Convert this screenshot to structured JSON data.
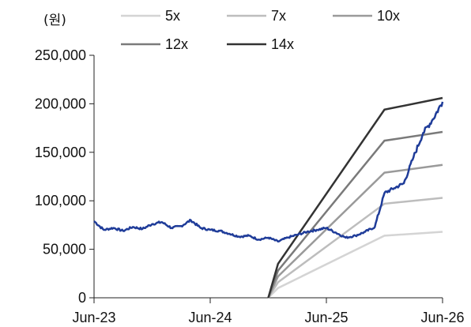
{
  "chart_data": {
    "type": "line",
    "y_unit_label": "(원)",
    "ylim": [
      0,
      250000
    ],
    "y_ticks": [
      0,
      50000,
      100000,
      150000,
      200000,
      250000
    ],
    "y_tick_labels": [
      "0",
      "50,000",
      "100,000",
      "150,000",
      "200,000",
      "250,000"
    ],
    "x_tick_labels": [
      "Jun-23",
      "Jun-24",
      "Jun-25",
      "Jun-26"
    ],
    "x_ticks": [
      "2023-06",
      "2024-06",
      "2025-06",
      "2026-06"
    ],
    "grid": false,
    "legend_position": "top",
    "price_series": {
      "color": "#1f3c99",
      "points": [
        [
          "2023-06",
          79000
        ],
        [
          "2023-07",
          70000
        ],
        [
          "2023-08",
          72000
        ],
        [
          "2023-09",
          69000
        ],
        [
          "2023-10",
          73000
        ],
        [
          "2023-11",
          71000
        ],
        [
          "2023-12",
          76000
        ],
        [
          "2024-01",
          78000
        ],
        [
          "2024-02",
          72000
        ],
        [
          "2024-03",
          74000
        ],
        [
          "2024-04",
          80000
        ],
        [
          "2024-05",
          72000
        ],
        [
          "2024-06",
          70000
        ],
        [
          "2024-07",
          69000
        ],
        [
          "2024-08",
          66000
        ],
        [
          "2024-09",
          63000
        ],
        [
          "2024-10",
          64000
        ],
        [
          "2024-11",
          60000
        ],
        [
          "2024-12",
          62000
        ],
        [
          "2025-01",
          58000
        ],
        [
          "2025-02",
          62000
        ],
        [
          "2025-03",
          65000
        ],
        [
          "2025-04",
          68000
        ],
        [
          "2025-05",
          70000
        ],
        [
          "2025-06",
          72000
        ],
        [
          "2025-07",
          67000
        ],
        [
          "2025-08",
          62000
        ],
        [
          "2025-09",
          64000
        ],
        [
          "2025-10",
          68000
        ],
        [
          "2025-11",
          73000
        ],
        [
          "2025-12",
          108000
        ],
        [
          "2026-01",
          113000
        ],
        [
          "2026-02",
          118000
        ],
        [
          "2026-03",
          145000
        ],
        [
          "2026-04",
          170000
        ],
        [
          "2026-05",
          184000
        ],
        [
          "2026-06",
          202000
        ]
      ]
    },
    "series": [
      {
        "name": "5x",
        "color": "#d4d4d4",
        "values": [
          [
            "2024-12",
            0
          ],
          [
            "2025-01",
            10000
          ],
          [
            "2025-12",
            64000
          ],
          [
            "2026-06",
            68000
          ]
        ]
      },
      {
        "name": "7x",
        "color": "#bdbdbd",
        "values": [
          [
            "2024-12",
            0
          ],
          [
            "2025-01",
            16000
          ],
          [
            "2025-12",
            97000
          ],
          [
            "2026-06",
            103000
          ]
        ]
      },
      {
        "name": "10x",
        "color": "#9a9a9a",
        "values": [
          [
            "2024-12",
            0
          ],
          [
            "2025-01",
            22000
          ],
          [
            "2025-12",
            129000
          ],
          [
            "2026-06",
            137000
          ]
        ]
      },
      {
        "name": "12x",
        "color": "#7a7a7a",
        "values": [
          [
            "2024-12",
            0
          ],
          [
            "2025-01",
            28000
          ],
          [
            "2025-12",
            162000
          ],
          [
            "2026-06",
            171000
          ]
        ]
      },
      {
        "name": "14x",
        "color": "#333333",
        "values": [
          [
            "2024-12",
            0
          ],
          [
            "2025-01",
            35000
          ],
          [
            "2025-12",
            194000
          ],
          [
            "2026-06",
            206000
          ]
        ]
      }
    ]
  }
}
